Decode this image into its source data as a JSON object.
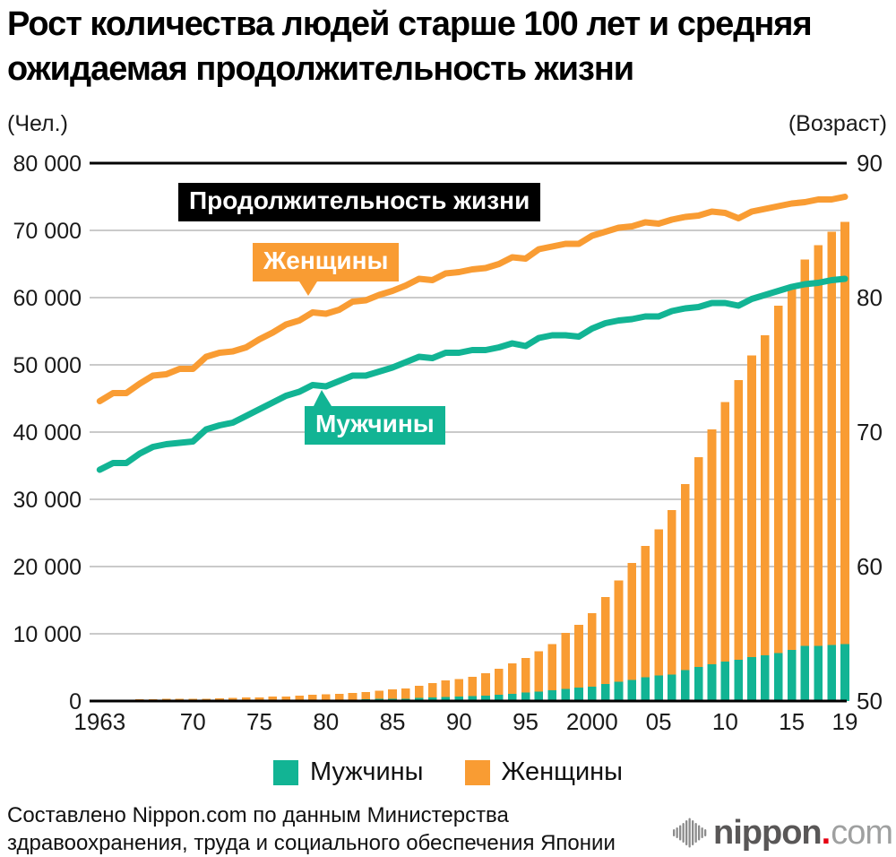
{
  "title": {
    "line1": "Рост количества людей старше 100 лет и средняя",
    "line2": "ожидаемая продолжительность жизни"
  },
  "axes": {
    "left_unit": "(Чел.)",
    "right_unit": "(Возраст)"
  },
  "callouts": {
    "life_expectancy": "Продолжительность жизни",
    "women": "Женщины",
    "men": "Мужчины"
  },
  "legend": {
    "men": "Мужчины",
    "women": "Женщины"
  },
  "source": {
    "line1": "Составлено Nippon.com по данным Министерства",
    "line2": "здравоохранения, труда и социального обеспечения Японии"
  },
  "logo": {
    "icon": "sound-wave-icon",
    "name": "nippon",
    "dot": ".",
    "tld": "com"
  },
  "colors": {
    "men": "#12B494",
    "women": "#F99C33",
    "grid": "#CACACA",
    "axis": "#000000",
    "callout_black": "#000000",
    "logo_dark": "#595757",
    "logo_light": "#9FA0A0",
    "logo_red": "#E60012"
  },
  "chart_data": {
    "type": "bar",
    "subtype": "stacked-bars-with-lines",
    "title": "Рост количества людей старше 100 лет и средняя ожидаемая продолжительность жизни",
    "x": [
      1963,
      1964,
      1965,
      1966,
      1967,
      1968,
      1969,
      1970,
      1971,
      1972,
      1973,
      1974,
      1975,
      1976,
      1977,
      1978,
      1979,
      1980,
      1981,
      1982,
      1983,
      1984,
      1985,
      1986,
      1987,
      1988,
      1989,
      1990,
      1991,
      1992,
      1993,
      1994,
      1995,
      1996,
      1997,
      1998,
      1999,
      2000,
      2001,
      2002,
      2003,
      2004,
      2005,
      2006,
      2007,
      2008,
      2009,
      2010,
      2011,
      2012,
      2013,
      2014,
      2015,
      2016,
      2017,
      2018,
      2019
    ],
    "bar_series": [
      {
        "name": "Мужчины",
        "axis": "left",
        "stack": "centenarians",
        "values": [
          20,
          31,
          36,
          46,
          52,
          67,
          70,
          62,
          70,
          78,
          91,
          96,
          102,
          113,
          122,
          132,
          152,
          174,
          202,
          233,
          269,
          347,
          359,
          361,
          462,
          562,
          630,
          680,
          749,
          822,
          943,
          1093,
          1255,
          1400,
          1570,
          1812,
          1973,
          2158,
          2541,
          2875,
          3159,
          3523,
          3779,
          3961,
          4613,
          5063,
          5447,
          5869,
          6162,
          6534,
          6791,
          7132,
          7586,
          8167,
          8197,
          8331,
          8463
        ]
      },
      {
        "name": "Женщины",
        "axis": "left",
        "stack": "centenarians",
        "values": [
          133,
          160,
          162,
          206,
          201,
          260,
          261,
          248,
          269,
          327,
          404,
          431,
          446,
          553,
          575,
          660,
          785,
          794,
          870,
          967,
          1085,
          1216,
          1381,
          1490,
          1809,
          2106,
          2448,
          2618,
          2876,
          3330,
          3859,
          4500,
          5123,
          5973,
          6921,
          8346,
          9373,
          10878,
          12934,
          15059,
          17402,
          19515,
          21775,
          24434,
          27682,
          31213,
          34952,
          38580,
          41594,
          44842,
          47606,
          51688,
          53982,
          57525,
          59627,
          61454,
          62775
        ]
      }
    ],
    "line_series": [
      {
        "name": "Мужчины",
        "axis": "right",
        "values": [
          67.2,
          67.7,
          67.7,
          68.4,
          68.9,
          69.1,
          69.2,
          69.3,
          70.2,
          70.5,
          70.7,
          71.2,
          71.7,
          72.2,
          72.7,
          73.0,
          73.5,
          73.4,
          73.8,
          74.2,
          74.2,
          74.5,
          74.8,
          75.2,
          75.6,
          75.5,
          75.9,
          75.9,
          76.1,
          76.1,
          76.3,
          76.6,
          76.4,
          77.0,
          77.2,
          77.2,
          77.1,
          77.7,
          78.1,
          78.3,
          78.4,
          78.6,
          78.6,
          79.0,
          79.2,
          79.3,
          79.6,
          79.6,
          79.4,
          79.9,
          80.2,
          80.5,
          80.8,
          81.0,
          81.1,
          81.3,
          81.4
        ]
      },
      {
        "name": "Женщины",
        "axis": "right",
        "values": [
          72.3,
          72.9,
          72.9,
          73.6,
          74.2,
          74.3,
          74.7,
          74.7,
          75.6,
          75.9,
          76.0,
          76.3,
          76.9,
          77.4,
          78.0,
          78.3,
          78.9,
          78.8,
          79.1,
          79.7,
          79.8,
          80.2,
          80.5,
          80.9,
          81.4,
          81.3,
          81.8,
          81.9,
          82.1,
          82.2,
          82.5,
          83.0,
          82.9,
          83.6,
          83.8,
          84.0,
          84.0,
          84.6,
          84.9,
          85.2,
          85.3,
          85.6,
          85.5,
          85.8,
          86.0,
          86.1,
          86.4,
          86.3,
          85.9,
          86.4,
          86.6,
          86.8,
          87.0,
          87.1,
          87.3,
          87.3,
          87.5
        ]
      }
    ],
    "left_axis": {
      "label": "(Чел.)",
      "min": 0,
      "max": 80000,
      "ticks": [
        {
          "label": "0",
          "value": 0
        },
        {
          "label": "10 000",
          "value": 10000
        },
        {
          "label": "20 000",
          "value": 20000
        },
        {
          "label": "30 000",
          "value": 30000
        },
        {
          "label": "40 000",
          "value": 40000
        },
        {
          "label": "50 000",
          "value": 50000
        },
        {
          "label": "60 000",
          "value": 60000
        },
        {
          "label": "70 000",
          "value": 70000
        },
        {
          "label": "80 000",
          "value": 80000
        }
      ]
    },
    "right_axis": {
      "label": "(Возраст)",
      "min": 50,
      "max": 90,
      "ticks": [
        {
          "label": "50",
          "value": 50
        },
        {
          "label": "60",
          "value": 60
        },
        {
          "label": "70",
          "value": 70
        },
        {
          "label": "80",
          "value": 80
        },
        {
          "label": "90",
          "value": 90
        }
      ]
    },
    "x_ticks": [
      {
        "label": "1963",
        "year": 1963
      },
      {
        "label": "70",
        "year": 1970
      },
      {
        "label": "75",
        "year": 1975
      },
      {
        "label": "80",
        "year": 1980
      },
      {
        "label": "85",
        "year": 1985
      },
      {
        "label": "90",
        "year": 1990
      },
      {
        "label": "95",
        "year": 1995
      },
      {
        "label": "2000",
        "year": 2000
      },
      {
        "label": "05",
        "year": 2005
      },
      {
        "label": "10",
        "year": 2010
      },
      {
        "label": "15",
        "year": 2015
      },
      {
        "label": "19",
        "year": 2019
      }
    ],
    "grid": true,
    "legend_position": "bottom"
  }
}
